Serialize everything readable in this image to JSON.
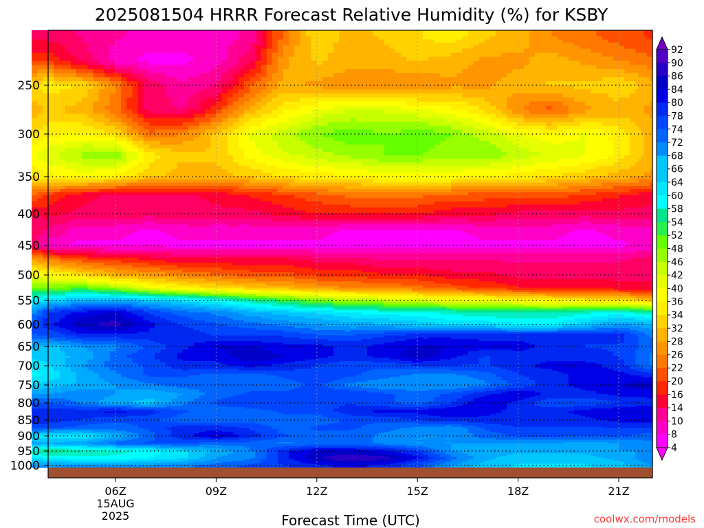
{
  "chart_data": {
    "type": "heatmap",
    "title": "2025081504 HRRR Forecast Relative Humidity (%) for KSBY",
    "xlabel": "Forecast Time (UTC)",
    "ylabel": "",
    "credit": "coolwx.com/models",
    "x_hours": [
      3,
      4,
      5,
      6,
      7,
      8,
      9,
      10,
      11,
      12,
      13,
      14,
      15,
      16,
      17,
      18,
      19,
      20,
      21,
      22
    ],
    "x_ticks": [
      {
        "hour": 6,
        "lines": [
          "06Z",
          "15AUG",
          "2025"
        ]
      },
      {
        "hour": 9,
        "lines": [
          "09Z"
        ]
      },
      {
        "hour": 12,
        "lines": [
          "12Z"
        ]
      },
      {
        "hour": 15,
        "lines": [
          "15Z"
        ]
      },
      {
        "hour": 18,
        "lines": [
          "18Z"
        ]
      },
      {
        "hour": 21,
        "lines": [
          "21Z"
        ]
      }
    ],
    "y_ticks": [
      "250",
      "300",
      "350",
      "400",
      "450",
      "500",
      "550",
      "600",
      "650",
      "700",
      "750",
      "800",
      "850",
      "900",
      "950",
      "1000"
    ],
    "y_levels": [
      200,
      225,
      250,
      275,
      300,
      325,
      350,
      375,
      400,
      425,
      450,
      475,
      500,
      525,
      550,
      575,
      600,
      625,
      650,
      675,
      700,
      725,
      750,
      775,
      800,
      825,
      850,
      875,
      900,
      925,
      950,
      975,
      1000
    ],
    "values": [
      [
        14,
        14,
        12,
        10,
        8,
        8,
        8,
        10,
        24,
        34,
        30,
        32,
        34,
        36,
        32,
        30,
        26,
        24,
        22,
        20
      ],
      [
        20,
        20,
        14,
        8,
        6,
        6,
        8,
        14,
        28,
        32,
        30,
        30,
        32,
        30,
        28,
        28,
        30,
        28,
        26,
        24
      ],
      [
        32,
        36,
        34,
        26,
        14,
        10,
        12,
        22,
        30,
        28,
        26,
        26,
        26,
        28,
        28,
        30,
        32,
        32,
        34,
        30
      ],
      [
        28,
        32,
        30,
        24,
        14,
        12,
        20,
        30,
        36,
        40,
        42,
        42,
        40,
        38,
        34,
        26,
        22,
        28,
        30,
        28
      ],
      [
        32,
        36,
        38,
        34,
        24,
        26,
        32,
        40,
        44,
        48,
        50,
        48,
        50,
        48,
        44,
        40,
        38,
        40,
        36,
        30
      ],
      [
        36,
        42,
        46,
        48,
        36,
        32,
        32,
        38,
        42,
        44,
        46,
        48,
        48,
        46,
        48,
        44,
        42,
        40,
        36,
        30
      ],
      [
        32,
        36,
        38,
        36,
        32,
        30,
        30,
        32,
        34,
        36,
        36,
        38,
        38,
        38,
        36,
        36,
        34,
        32,
        30,
        28
      ],
      [
        26,
        20,
        16,
        14,
        14,
        14,
        16,
        18,
        20,
        22,
        24,
        24,
        24,
        22,
        22,
        22,
        22,
        20,
        18,
        16
      ],
      [
        14,
        16,
        14,
        14,
        14,
        14,
        14,
        14,
        16,
        18,
        18,
        18,
        18,
        16,
        16,
        14,
        14,
        14,
        14,
        14
      ],
      [
        16,
        12,
        8,
        8,
        6,
        8,
        8,
        8,
        8,
        8,
        6,
        6,
        6,
        6,
        8,
        8,
        8,
        6,
        8,
        8
      ],
      [
        20,
        8,
        6,
        6,
        6,
        6,
        6,
        6,
        6,
        6,
        6,
        6,
        6,
        6,
        6,
        6,
        6,
        6,
        6,
        8
      ],
      [
        32,
        26,
        22,
        20,
        18,
        16,
        16,
        16,
        16,
        14,
        14,
        12,
        12,
        12,
        12,
        12,
        12,
        12,
        12,
        14
      ],
      [
        40,
        38,
        34,
        30,
        28,
        26,
        24,
        22,
        22,
        20,
        20,
        18,
        18,
        16,
        16,
        14,
        14,
        14,
        14,
        14
      ],
      [
        50,
        48,
        50,
        46,
        40,
        36,
        34,
        32,
        30,
        28,
        26,
        26,
        24,
        22,
        20,
        18,
        18,
        18,
        16,
        16
      ],
      [
        58,
        64,
        68,
        68,
        66,
        64,
        60,
        56,
        52,
        48,
        46,
        44,
        42,
        40,
        40,
        38,
        36,
        36,
        34,
        32
      ],
      [
        64,
        78,
        82,
        84,
        78,
        74,
        72,
        68,
        66,
        64,
        62,
        60,
        60,
        58,
        56,
        56,
        56,
        58,
        60,
        56
      ],
      [
        72,
        80,
        86,
        88,
        82,
        78,
        76,
        74,
        72,
        70,
        68,
        68,
        66,
        64,
        64,
        62,
        62,
        66,
        70,
        68
      ],
      [
        74,
        76,
        80,
        80,
        80,
        80,
        78,
        78,
        78,
        76,
        76,
        78,
        80,
        80,
        80,
        80,
        80,
        80,
        80,
        72
      ],
      [
        70,
        66,
        70,
        72,
        76,
        80,
        84,
        84,
        82,
        82,
        80,
        82,
        84,
        84,
        82,
        82,
        80,
        78,
        78,
        74
      ],
      [
        64,
        66,
        68,
        74,
        78,
        82,
        82,
        86,
        84,
        82,
        80,
        82,
        86,
        82,
        78,
        80,
        80,
        80,
        78,
        72
      ],
      [
        62,
        64,
        70,
        74,
        76,
        80,
        80,
        82,
        80,
        78,
        76,
        76,
        78,
        78,
        78,
        80,
        82,
        82,
        80,
        72
      ],
      [
        60,
        62,
        68,
        72,
        76,
        76,
        74,
        74,
        76,
        78,
        76,
        74,
        72,
        72,
        74,
        78,
        80,
        82,
        82,
        80
      ],
      [
        62,
        66,
        68,
        70,
        72,
        74,
        74,
        74,
        74,
        76,
        72,
        70,
        70,
        70,
        72,
        76,
        80,
        82,
        84,
        86
      ],
      [
        70,
        70,
        72,
        70,
        68,
        70,
        74,
        76,
        76,
        78,
        78,
        76,
        74,
        76,
        80,
        84,
        80,
        80,
        82,
        82
      ],
      [
        76,
        76,
        72,
        68,
        66,
        72,
        76,
        78,
        78,
        78,
        78,
        76,
        74,
        78,
        84,
        80,
        76,
        76,
        78,
        80
      ],
      [
        78,
        80,
        80,
        82,
        80,
        76,
        74,
        74,
        76,
        76,
        80,
        82,
        82,
        84,
        82,
        80,
        80,
        82,
        84,
        84
      ],
      [
        80,
        80,
        78,
        76,
        76,
        74,
        74,
        74,
        74,
        74,
        76,
        76,
        78,
        80,
        80,
        80,
        80,
        80,
        82,
        82
      ],
      [
        76,
        76,
        74,
        74,
        76,
        80,
        80,
        78,
        74,
        76,
        76,
        74,
        72,
        70,
        76,
        78,
        78,
        78,
        78,
        78
      ],
      [
        66,
        62,
        62,
        68,
        74,
        80,
        84,
        80,
        76,
        74,
        74,
        72,
        70,
        70,
        74,
        76,
        76,
        76,
        76,
        74
      ],
      [
        70,
        68,
        70,
        74,
        76,
        76,
        74,
        74,
        72,
        74,
        74,
        72,
        70,
        70,
        70,
        70,
        70,
        68,
        70,
        72
      ],
      [
        58,
        54,
        56,
        58,
        60,
        64,
        68,
        72,
        80,
        84,
        84,
        82,
        78,
        70,
        68,
        68,
        68,
        68,
        70,
        70
      ],
      [
        66,
        62,
        60,
        60,
        62,
        64,
        70,
        72,
        80,
        86,
        90,
        88,
        82,
        74,
        68,
        66,
        66,
        66,
        68,
        72
      ],
      [
        70,
        70,
        70,
        70,
        70,
        72,
        74,
        76,
        78,
        80,
        82,
        80,
        76,
        70,
        66,
        64,
        64,
        64,
        66,
        70
      ]
    ],
    "colorbar_labels": [
      "92",
      "90",
      "86",
      "84",
      "80",
      "78",
      "74",
      "72",
      "68",
      "66",
      "64",
      "60",
      "58",
      "54",
      "52",
      "48",
      "46",
      "42",
      "40",
      "36",
      "34",
      "32",
      "28",
      "26",
      "22",
      "20",
      "16",
      "14",
      "10",
      "8",
      "4"
    ],
    "colors": {
      "scale": [
        "#ff00ff",
        "#ff00c8",
        "#ff0096",
        "#ff0064",
        "#ff0032",
        "#ff2800",
        "#ff5000",
        "#ff7800",
        "#ff9600",
        "#ffb400",
        "#ffd200",
        "#ffee00",
        "#ffff00",
        "#e6ff00",
        "#c8ff00",
        "#96ff00",
        "#64ff00",
        "#28f050",
        "#00e68c",
        "#00f0c8",
        "#00ffff",
        "#00e6ff",
        "#00c8ff",
        "#00aaff",
        "#008cff",
        "#0064ff",
        "#0046ff",
        "#0028f0",
        "#0000e6",
        "#0000c8",
        "#2800c8",
        "#5000c8",
        "#7800c8"
      ],
      "ground": "#a05030",
      "credit": "#ff3c3c",
      "grid": "#000000"
    }
  }
}
